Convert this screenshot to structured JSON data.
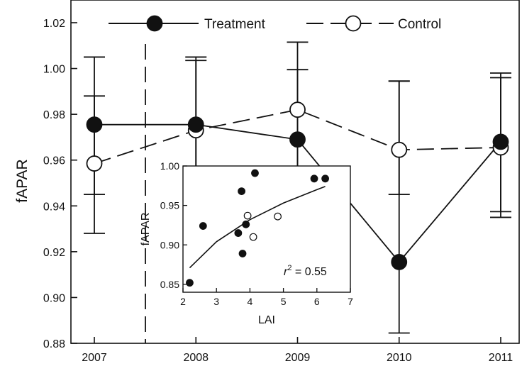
{
  "chart_data": [
    {
      "type": "line",
      "ylabel": "fAPAR",
      "xlabel": "",
      "categories": [
        "2007",
        "2008",
        "2009",
        "2010",
        "2011"
      ],
      "ylim": [
        0.88,
        1.025
      ],
      "yticks": [
        "0.88",
        "0.90",
        "0.92",
        "0.94",
        "0.96",
        "0.98",
        "1.00",
        "1.02"
      ],
      "legend_position": "top",
      "series": [
        {
          "name": "Treatment",
          "style": "solid-filled-markers",
          "values": [
            0.9755,
            0.9755,
            0.969,
            0.9155,
            0.968
          ],
          "err_low": [
            0.928,
            0.946,
            0.928,
            0.8845,
            0.935
          ],
          "err_high": [
            1.005,
            1.005,
            1.0115,
            0.9945,
            0.998
          ]
        },
        {
          "name": "Control",
          "style": "dashed-open-markers",
          "values": [
            0.9585,
            0.973,
            0.982,
            0.9645,
            0.9655
          ],
          "err_low": [
            0.945,
            0.946,
            0.948,
            0.945,
            0.9375
          ],
          "err_high": [
            0.988,
            1.0035,
            0.9995,
            0.9945,
            0.996
          ]
        }
      ],
      "annotations": [
        {
          "type": "vertical-dashed-line",
          "x_between": [
            "2007",
            "2008"
          ]
        }
      ]
    },
    {
      "type": "scatter",
      "inset": true,
      "xlabel": "LAI",
      "ylabel": "fAPAR",
      "xlim": [
        2,
        7
      ],
      "ylim": [
        0.84,
        1.0
      ],
      "xticks": [
        "2",
        "3",
        "4",
        "5",
        "6",
        "7"
      ],
      "yticks": [
        "0.85",
        "0.90",
        "0.95",
        "1.00"
      ],
      "annotation": {
        "r_symbol": "r",
        "r_exponent": "2",
        "r_value": " = 0.55"
      },
      "series": [
        {
          "name": "Treatment",
          "marker": "filled",
          "points": [
            [
              2.2,
              0.852
            ],
            [
              2.6,
              0.924
            ],
            [
              3.65,
              0.915
            ],
            [
              3.75,
              0.968
            ],
            [
              3.78,
              0.889
            ],
            [
              3.88,
              0.926
            ],
            [
              4.15,
              0.991
            ],
            [
              5.92,
              0.984
            ],
            [
              6.25,
              0.984
            ]
          ]
        },
        {
          "name": "Control",
          "marker": "open",
          "points": [
            [
              3.93,
              0.937
            ],
            [
              4.1,
              0.91
            ],
            [
              4.83,
              0.936
            ]
          ]
        }
      ],
      "fit_curve": {
        "type": "curve",
        "points": [
          [
            2.2,
            0.871
          ],
          [
            3.0,
            0.904
          ],
          [
            4.0,
            0.932
          ],
          [
            5.0,
            0.953
          ],
          [
            6.0,
            0.97
          ],
          [
            6.25,
            0.974
          ]
        ]
      }
    }
  ],
  "legend": {
    "treatment_label": "Treatment",
    "control_label": "Control"
  },
  "colors": {
    "ink": "#111111",
    "background": "#ffffff"
  }
}
